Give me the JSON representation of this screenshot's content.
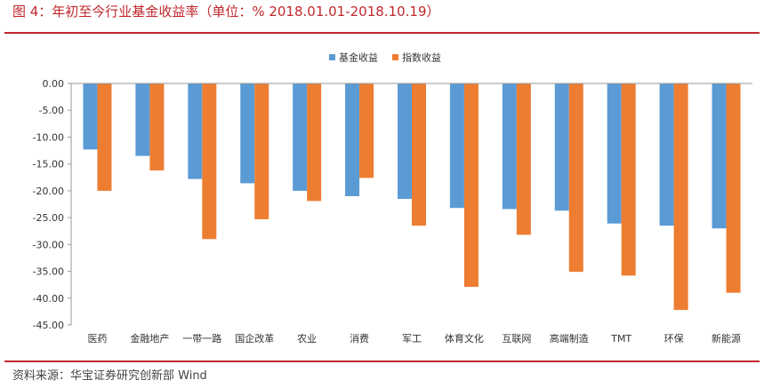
{
  "figure": {
    "title": "图 4：年初至今行业基金收益率（单位：% 2018.01.01-2018.10.19）",
    "source": "资料来源：华宝证券研究创新部  Wind"
  },
  "colors": {
    "fund": "#5b9bd5",
    "index": "#ed7d31",
    "accent": "#c0272d"
  },
  "chart_data": {
    "type": "bar",
    "title": "",
    "xlabel": "",
    "ylabel": "",
    "ylim": [
      -45,
      0
    ],
    "yticks": [
      0,
      -5,
      -10,
      -15,
      -20,
      -25,
      -30,
      -35,
      -40,
      -45
    ],
    "ytick_labels": [
      "0.00",
      "-5.00",
      "-10.00",
      "-15.00",
      "-20.00",
      "-25.00",
      "-30.00",
      "-35.00",
      "-40.00",
      "-45.00"
    ],
    "legend_position": "top-center",
    "grid": false,
    "categories": [
      "医药",
      "金融地产",
      "一带一路",
      "国企改革",
      "农业",
      "消费",
      "军工",
      "体育文化",
      "互联网",
      "高端制造",
      "TMT",
      "环保",
      "新能源"
    ],
    "series": [
      {
        "name": "基金收益",
        "values": [
          -12.3,
          -13.5,
          -17.8,
          -18.6,
          -20.0,
          -21.0,
          -21.5,
          -23.2,
          -23.4,
          -23.7,
          -26.1,
          -26.5,
          -27.0
        ]
      },
      {
        "name": "指数收益",
        "values": [
          -20.0,
          -16.2,
          -29.0,
          -25.3,
          -21.9,
          -17.6,
          -26.5,
          -37.9,
          -28.2,
          -35.1,
          -35.8,
          -42.2,
          -39.0
        ]
      }
    ]
  }
}
